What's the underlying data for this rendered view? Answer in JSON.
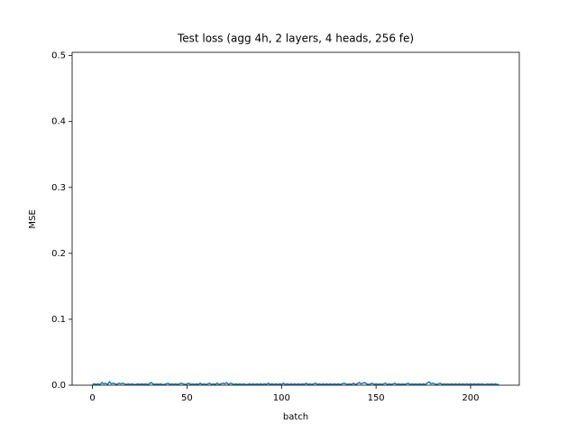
{
  "chart_data": {
    "type": "line",
    "title": "Test loss (agg 4h, 2 layers, 4 heads, 256 fe)",
    "xlabel": "batch",
    "ylabel": "MSE",
    "x": [
      0,
      1,
      2,
      3,
      4,
      5,
      6,
      7,
      8,
      9,
      10,
      11,
      12,
      13,
      14,
      15,
      16,
      17,
      18,
      19,
      20,
      21,
      22,
      23,
      24,
      25,
      26,
      27,
      28,
      29,
      30,
      31,
      32,
      33,
      34,
      35,
      36,
      37,
      38,
      39,
      40,
      41,
      42,
      43,
      44,
      45,
      46,
      47,
      48,
      49,
      50,
      51,
      52,
      53,
      54,
      55,
      56,
      57,
      58,
      59,
      60,
      61,
      62,
      63,
      64,
      65,
      66,
      67,
      68,
      69,
      70,
      71,
      72,
      73,
      74,
      75,
      76,
      77,
      78,
      79,
      80,
      81,
      82,
      83,
      84,
      85,
      86,
      87,
      88,
      89,
      90,
      91,
      92,
      93,
      94,
      95,
      96,
      97,
      98,
      99,
      100,
      101,
      102,
      103,
      104,
      105,
      106,
      107,
      108,
      109,
      110,
      111,
      112,
      113,
      114,
      115,
      116,
      117,
      118,
      119,
      120,
      121,
      122,
      123,
      124,
      125,
      126,
      127,
      128,
      129,
      130,
      131,
      132,
      133,
      134,
      135,
      136,
      137,
      138,
      139,
      140,
      141,
      142,
      143,
      144,
      145,
      146,
      147,
      148,
      149,
      150,
      151,
      152,
      153,
      154,
      155,
      156,
      157,
      158,
      159,
      160,
      161,
      162,
      163,
      164,
      165,
      166,
      167,
      168,
      169,
      170,
      171,
      172,
      173,
      174,
      175,
      176,
      177,
      178,
      179,
      180,
      181,
      182,
      183,
      184,
      185,
      186,
      187,
      188,
      189,
      190,
      191,
      192,
      193,
      194,
      195,
      196,
      197,
      198,
      199,
      200,
      201,
      202,
      203,
      204,
      205,
      206,
      207,
      208,
      209,
      210,
      211,
      212,
      213,
      214,
      215
    ],
    "series": [
      {
        "color": "#1f77b4",
        "values": [
          0.001,
          0.002,
          0.001,
          0.002,
          0.001,
          0.004,
          0.002,
          0.003,
          0.001,
          0.005,
          0.002,
          0.003,
          0.002,
          0.001,
          0.003,
          0.002,
          0.003,
          0.002,
          0.001,
          0.002,
          0.001,
          0.002,
          0.001,
          0.001,
          0.002,
          0.001,
          0.002,
          0.001,
          0.002,
          0.001,
          0.002,
          0.004,
          0.002,
          0.001,
          0.002,
          0.001,
          0.002,
          0.001,
          0.001,
          0.002,
          0.003,
          0.001,
          0.002,
          0.001,
          0.002,
          0.001,
          0.002,
          0.003,
          0.002,
          0.001,
          0.002,
          0.003,
          0.001,
          0.002,
          0.001,
          0.002,
          0.001,
          0.003,
          0.001,
          0.002,
          0.001,
          0.002,
          0.003,
          0.001,
          0.002,
          0.001,
          0.003,
          0.001,
          0.002,
          0.003,
          0.002,
          0.004,
          0.001,
          0.003,
          0.002,
          0.001,
          0.002,
          0.001,
          0.002,
          0.001,
          0.002,
          0.001,
          0.001,
          0.002,
          0.001,
          0.002,
          0.001,
          0.002,
          0.001,
          0.002,
          0.001,
          0.002,
          0.001,
          0.003,
          0.001,
          0.002,
          0.001,
          0.002,
          0.001,
          0.002,
          0.001,
          0.003,
          0.001,
          0.002,
          0.001,
          0.002,
          0.001,
          0.002,
          0.001,
          0.002,
          0.001,
          0.002,
          0.001,
          0.003,
          0.001,
          0.002,
          0.001,
          0.002,
          0.003,
          0.001,
          0.002,
          0.001,
          0.002,
          0.001,
          0.002,
          0.001,
          0.002,
          0.001,
          0.002,
          0.001,
          0.002,
          0.001,
          0.002,
          0.003,
          0.002,
          0.001,
          0.002,
          0.001,
          0.003,
          0.001,
          0.002,
          0.004,
          0.002,
          0.003,
          0.004,
          0.002,
          0.001,
          0.002,
          0.003,
          0.001,
          0.002,
          0.001,
          0.002,
          0.001,
          0.002,
          0.003,
          0.001,
          0.002,
          0.001,
          0.002,
          0.003,
          0.001,
          0.002,
          0.001,
          0.002,
          0.001,
          0.002,
          0.003,
          0.001,
          0.002,
          0.001,
          0.002,
          0.001,
          0.002,
          0.001,
          0.002,
          0.001,
          0.003,
          0.005,
          0.002,
          0.003,
          0.002,
          0.001,
          0.002,
          0.003,
          0.001,
          0.002,
          0.001,
          0.002,
          0.001,
          0.002,
          0.001,
          0.002,
          0.001,
          0.002,
          0.001,
          0.002,
          0.001,
          0.002,
          0.001,
          0.002,
          0.001,
          0.002,
          0.001,
          0.002,
          0.001,
          0.002,
          0.001,
          0.001,
          0.002,
          0.001,
          0.002,
          0.001,
          0.002,
          0.001,
          0.001
        ]
      }
    ],
    "xlim": [
      -10.75,
      225.75
    ],
    "xticks": [
      0,
      50,
      100,
      150,
      200
    ],
    "ylim": [
      0,
      0.505
    ],
    "yticks": [
      {
        "value": 0,
        "label": "0.0"
      },
      0.1,
      0.2,
      0.3,
      0.4,
      0.5
    ]
  }
}
